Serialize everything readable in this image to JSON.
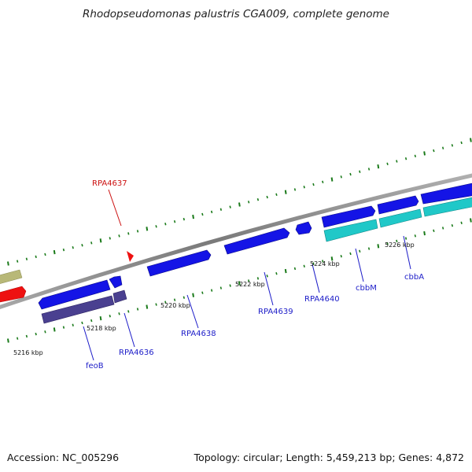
{
  "title": "Rhodopseudomonas palustris CGA009, complete genome",
  "footer": {
    "accession_label": "Accession:",
    "accession": "NC_005296",
    "topology_label": "Topology:",
    "topology": "circular",
    "length_label": "Length:",
    "length": "5,459,213 bp",
    "genes_label": "Genes:",
    "genes": "4,872"
  },
  "colors": {
    "backbone": "#8c8c8c",
    "tick": "#1a7a1a",
    "gene_blue": "#1414e6",
    "gene_dark": "#4a4090",
    "gene_cyan": "#20c8c8",
    "gene_red": "#ee1111",
    "gene_olive": "#b8b878",
    "label_blue": "#1c1cc8",
    "label_red": "#cc1111"
  },
  "scale_labels": [
    "5216 kbp",
    "5218 kbp",
    "5220 kbp",
    "5222 kbp",
    "5224 kbp",
    "5226 kbp"
  ],
  "genes": [
    {
      "name": "feoB",
      "color": "label_blue"
    },
    {
      "name": "RPA4636",
      "color": "label_blue"
    },
    {
      "name": "RPA4637",
      "color": "label_red"
    },
    {
      "name": "RPA4638",
      "color": "label_blue"
    },
    {
      "name": "RPA4639",
      "color": "label_blue"
    },
    {
      "name": "RPA4640",
      "color": "label_blue"
    },
    {
      "name": "cbbM",
      "color": "label_blue"
    },
    {
      "name": "cbbA",
      "color": "label_blue"
    }
  ]
}
